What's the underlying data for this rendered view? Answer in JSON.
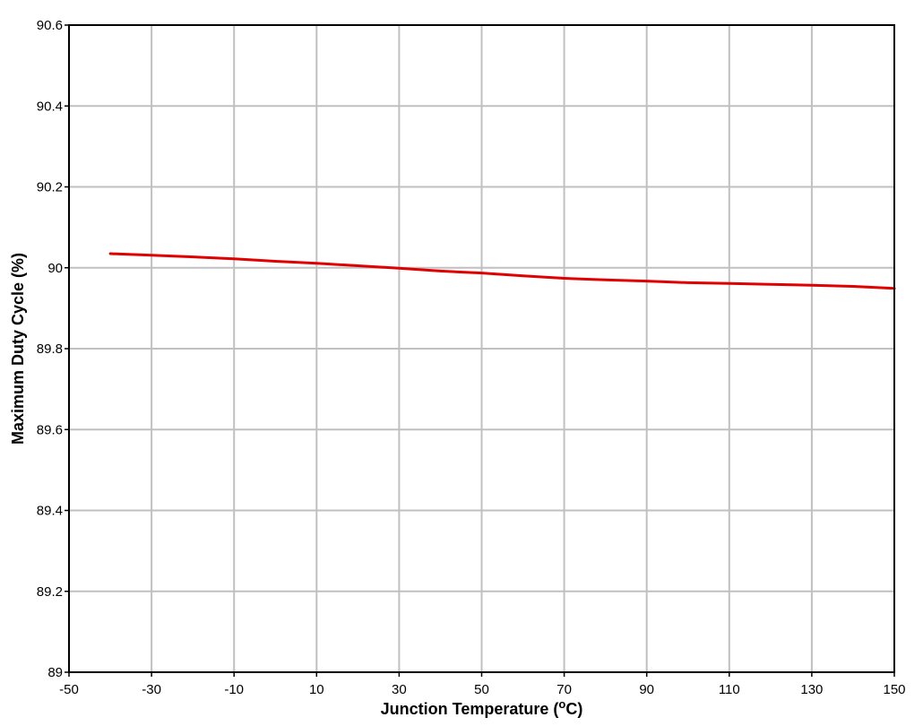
{
  "chart_data": {
    "type": "line",
    "title": "",
    "xlabel": {
      "main": "Junction Temperature (",
      "sup": "o",
      "unit_end": "C)"
    },
    "ylabel": "Maximum Duty Cycle (%)",
    "xlim": [
      -50,
      150
    ],
    "ylim": [
      89,
      90.6
    ],
    "x_ticks": [
      -50,
      -30,
      -10,
      10,
      30,
      50,
      70,
      90,
      110,
      130,
      150
    ],
    "x_tick_labels": [
      "-50",
      "-30",
      "-10",
      "10",
      "30",
      "50",
      "70",
      "90",
      "110",
      "130",
      "150"
    ],
    "y_ticks": [
      89,
      89.2,
      89.4,
      89.6,
      89.8,
      90,
      90.2,
      90.4,
      90.6
    ],
    "y_tick_labels": [
      "89",
      "89.2",
      "89.4",
      "89.6",
      "89.8",
      "90",
      "90.2",
      "90.4",
      "90.6"
    ],
    "grid": true,
    "series": [
      {
        "color": "#e00000",
        "x": [
          -40,
          -30,
          -20,
          -10,
          0,
          10,
          20,
          30,
          40,
          50,
          60,
          70,
          80,
          90,
          100,
          110,
          120,
          130,
          140,
          150
        ],
        "y": [
          90.035,
          90.031,
          90.027,
          90.022,
          90.016,
          90.011,
          90.005,
          89.999,
          89.992,
          89.987,
          89.98,
          89.974,
          89.97,
          89.967,
          89.963,
          89.961,
          89.959,
          89.957,
          89.954,
          89.949
        ]
      }
    ]
  }
}
